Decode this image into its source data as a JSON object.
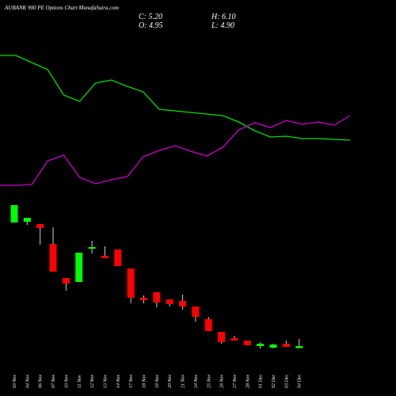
{
  "chart_data": {
    "type": "candlestick",
    "title": "AUBANK 900  PE Options  Chart MunafaSutra.com",
    "header": [
      "C: 5.20",
      "H: 6.10",
      "O: 4.95",
      "L: 4.90"
    ],
    "categories": [
      "03 Nov",
      "04 Nov",
      "06 Nov",
      "07 Nov",
      "10 Nov",
      "11 Nov",
      "12 Nov",
      "13 Nov",
      "14 Nov",
      "17 Nov",
      "18 Nov",
      "19 Nov",
      "20 Nov",
      "21 Nov",
      "24 Nov",
      "25 Nov",
      "26 Nov",
      "27 Nov",
      "28 Nov",
      "01 Dec",
      "02 Dec",
      "03 Dec",
      "04 Dec"
    ],
    "open": [
      20.8,
      20.9,
      20.6,
      18.1,
      13.8,
      13.3,
      17.5,
      16.6,
      17.4,
      15.0,
      11.3,
      12.0,
      11.1,
      10.9,
      10.2,
      8.6,
      7.0,
      6.2,
      5.9,
      5.2,
      5.0,
      5.5,
      4.95
    ],
    "high": [
      23.0,
      21.4,
      20.6,
      20.2,
      13.8,
      17.0,
      18.5,
      17.8,
      17.4,
      15.0,
      11.6,
      12.0,
      11.1,
      11.7,
      10.2,
      8.9,
      7.0,
      6.5,
      5.9,
      5.7,
      5.5,
      5.9,
      6.1
    ],
    "low": [
      20.8,
      20.5,
      18.0,
      14.6,
      12.2,
      13.3,
      16.9,
      16.3,
      15.3,
      10.6,
      10.6,
      10.1,
      10.2,
      9.8,
      8.3,
      7.1,
      5.5,
      5.9,
      5.3,
      4.9,
      4.9,
      5.1,
      4.9
    ],
    "close": [
      23.0,
      21.4,
      20.1,
      14.6,
      13.1,
      17.0,
      17.7,
      16.3,
      15.3,
      11.3,
      11.0,
      10.7,
      10.5,
      10.2,
      8.9,
      7.1,
      5.7,
      5.9,
      5.3,
      5.5,
      5.4,
      5.1,
      5.2
    ],
    "up_color": "#00ff00",
    "down_color": "#ff0000",
    "ylim": [
      3.9,
      23.9
    ],
    "lines": {
      "ylim": [
        0,
        20
      ],
      "series": [
        {
          "color": "#00dd00",
          "values": [
            18.0,
            18.0,
            17.1,
            16.2,
            13.0,
            12.2,
            14.5,
            14.9,
            14.1,
            13.4,
            11.2,
            11.0,
            10.8,
            10.6,
            10.4,
            9.6,
            8.5,
            7.7,
            7.8,
            7.5,
            7.5,
            7.4,
            7.3
          ]
        },
        {
          "color": "#cc00cc",
          "values": [
            1.6,
            1.6,
            1.7,
            4.7,
            5.4,
            2.6,
            1.8,
            2.3,
            2.7,
            5.2,
            6.0,
            6.6,
            5.9,
            5.3,
            6.4,
            8.6,
            9.5,
            8.9,
            9.8,
            9.3,
            9.6,
            9.2,
            10.4
          ]
        }
      ]
    }
  }
}
